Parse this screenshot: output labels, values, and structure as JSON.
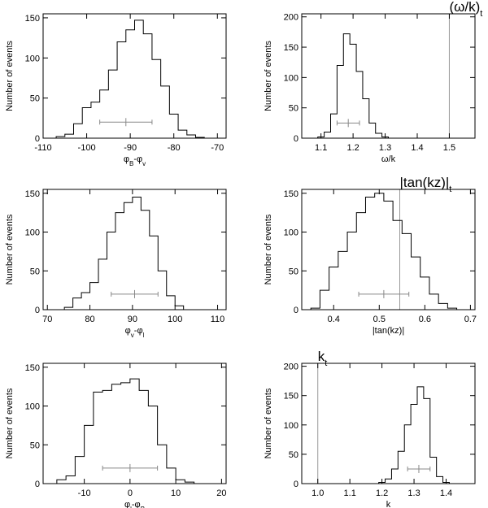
{
  "chart_data": [
    {
      "type": "histogram",
      "xlabel": "φB-φv",
      "ylabel": "Number of events",
      "xlim": [
        -110,
        -68
      ],
      "ylim": [
        0,
        155
      ],
      "xticks": [
        -110,
        -100,
        -90,
        -80,
        -70
      ],
      "xtick_labels": [
        "-110",
        "-100",
        "-90",
        "-80",
        "-70"
      ],
      "yticks": [
        0,
        50,
        100,
        150
      ],
      "ytick_labels": [
        "0",
        "50",
        "100",
        "150"
      ],
      "bin_edges": [
        -107,
        -105,
        -103,
        -101,
        -99,
        -97,
        -95,
        -93,
        -91,
        -89,
        -87,
        -85,
        -83,
        -81,
        -79,
        -77,
        -75,
        -73
      ],
      "counts": [
        2,
        5,
        18,
        38,
        45,
        60,
        85,
        120,
        135,
        147,
        130,
        98,
        65,
        30,
        10,
        4,
        1
      ],
      "errorbar": {
        "center": -91,
        "y": 20,
        "low": -97,
        "high": -85
      }
    },
    {
      "type": "histogram",
      "xlabel": "ω/k",
      "ylabel": "Number of events",
      "xlim": [
        1.04,
        1.58
      ],
      "ylim": [
        0,
        205
      ],
      "xticks": [
        1.1,
        1.2,
        1.3,
        1.4,
        1.5
      ],
      "xtick_labels": [
        "1.1",
        "1.2",
        "1.3",
        "1.4",
        "1.5"
      ],
      "yticks": [
        0,
        50,
        100,
        150,
        200
      ],
      "ytick_labels": [
        "0",
        "50",
        "100",
        "150",
        "200"
      ],
      "bin_edges": [
        1.09,
        1.11,
        1.13,
        1.15,
        1.17,
        1.19,
        1.21,
        1.23,
        1.25,
        1.27,
        1.29,
        1.31,
        1.33
      ],
      "counts": [
        2,
        10,
        40,
        120,
        172,
        155,
        110,
        65,
        25,
        8,
        2,
        0
      ],
      "errorbar": {
        "center": 1.185,
        "y": 25,
        "low": 1.15,
        "high": 1.22
      },
      "reference": {
        "x": 1.5,
        "label": "(ω/k)t"
      }
    },
    {
      "type": "histogram",
      "xlabel": "φv-φl",
      "ylabel": "Number of events",
      "xlim": [
        69,
        112
      ],
      "ylim": [
        0,
        155
      ],
      "xticks": [
        70,
        80,
        90,
        100,
        110
      ],
      "xtick_labels": [
        "70",
        "80",
        "90",
        "100",
        "110"
      ],
      "yticks": [
        0,
        50,
        100,
        150
      ],
      "ytick_labels": [
        "0",
        "50",
        "100",
        "150"
      ],
      "bin_edges": [
        74,
        76,
        78,
        80,
        82,
        84,
        86,
        88,
        90,
        92,
        94,
        96,
        98,
        100,
        102
      ],
      "counts": [
        3,
        15,
        22,
        35,
        65,
        100,
        125,
        138,
        145,
        128,
        95,
        50,
        18,
        5
      ],
      "errorbar": {
        "center": 90.5,
        "y": 20,
        "low": 85,
        "high": 96
      }
    },
    {
      "type": "histogram",
      "xlabel": "|tan(kz)|",
      "ylabel": "Number of events",
      "xlim": [
        0.33,
        0.71
      ],
      "ylim": [
        0,
        155
      ],
      "xticks": [
        0.4,
        0.5,
        0.6,
        0.7
      ],
      "xtick_labels": [
        "0.4",
        "0.5",
        "0.6",
        "0.7"
      ],
      "yticks": [
        0,
        50,
        100,
        150
      ],
      "ytick_labels": [
        "0",
        "50",
        "100",
        "150"
      ],
      "bin_edges": [
        0.35,
        0.37,
        0.39,
        0.41,
        0.43,
        0.45,
        0.47,
        0.49,
        0.51,
        0.53,
        0.55,
        0.57,
        0.59,
        0.61,
        0.63,
        0.65,
        0.67
      ],
      "counts": [
        2,
        25,
        55,
        75,
        100,
        125,
        145,
        150,
        140,
        115,
        98,
        68,
        42,
        20,
        8,
        2
      ],
      "errorbar": {
        "center": 0.51,
        "y": 20,
        "low": 0.455,
        "high": 0.565
      },
      "reference": {
        "x": 0.545,
        "label": "|tan(kz)|t"
      }
    },
    {
      "type": "histogram",
      "xlabel": "φl-φB",
      "ylabel": "Number of events",
      "xlim": [
        -19,
        21
      ],
      "ylim": [
        0,
        155
      ],
      "xticks": [
        -10,
        0,
        10,
        20
      ],
      "xtick_labels": [
        "-10",
        "0",
        "10",
        "20"
      ],
      "yticks": [
        0,
        50,
        100,
        150
      ],
      "ytick_labels": [
        "0",
        "50",
        "100",
        "150"
      ],
      "bin_edges": [
        -16,
        -14,
        -12,
        -10,
        -8,
        -6,
        -4,
        -2,
        0,
        2,
        4,
        6,
        8,
        10,
        12,
        14
      ],
      "counts": [
        5,
        10,
        35,
        75,
        118,
        120,
        128,
        130,
        135,
        120,
        100,
        50,
        20,
        5,
        2
      ],
      "errorbar": {
        "center": 0,
        "y": 20,
        "low": -6,
        "high": 6
      }
    },
    {
      "type": "histogram",
      "xlabel": "k",
      "ylabel": "Number of events",
      "xlim": [
        0.95,
        1.49
      ],
      "ylim": [
        0,
        205
      ],
      "xticks": [
        1.0,
        1.1,
        1.2,
        1.3,
        1.4
      ],
      "xtick_labels": [
        "1.0",
        "1.1",
        "1.2",
        "1.3",
        "1.4"
      ],
      "yticks": [
        0,
        50,
        100,
        150,
        200
      ],
      "ytick_labels": [
        "0",
        "50",
        "100",
        "150",
        "200"
      ],
      "bin_edges": [
        1.19,
        1.21,
        1.23,
        1.25,
        1.27,
        1.29,
        1.31,
        1.33,
        1.35,
        1.37,
        1.39,
        1.41
      ],
      "counts": [
        2,
        8,
        25,
        55,
        100,
        135,
        165,
        145,
        45,
        12,
        2
      ],
      "errorbar": {
        "center": 1.315,
        "y": 25,
        "low": 1.28,
        "high": 1.35
      },
      "reference": {
        "x": 1.0,
        "label": "kt"
      }
    }
  ]
}
